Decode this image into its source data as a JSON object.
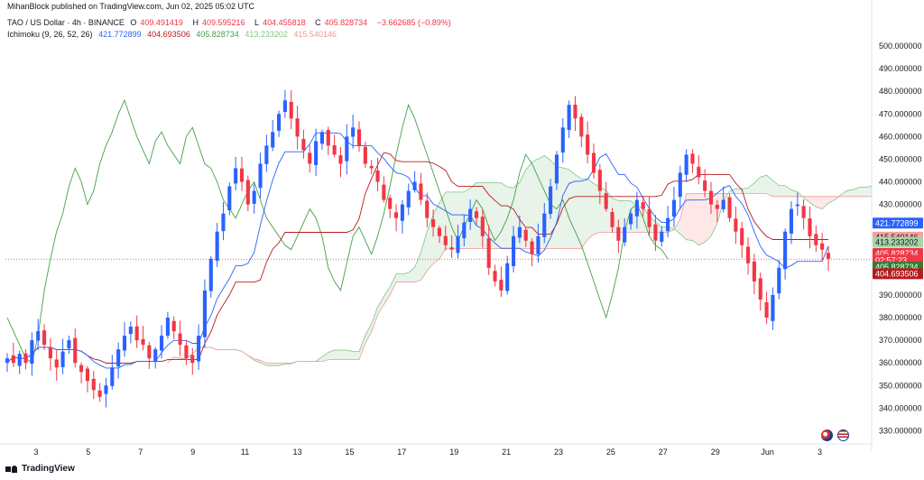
{
  "header": {
    "publisher": "MihanBlock published on TradingView.com, Jun 02, 2025 05:02 UTC",
    "symbol_line": "TAO / US Dollar · 4h · BINANCE",
    "ohlc": [
      {
        "label": "O",
        "value": "409.491419"
      },
      {
        "label": "H",
        "value": "409.595216"
      },
      {
        "label": "L",
        "value": "404.455818"
      },
      {
        "label": "C",
        "value": "405.828734"
      },
      {
        "label": "",
        "value": "−3.662685 (−0.89%)"
      }
    ],
    "ichimoku_label": "Ichimoku (9, 26, 52, 26)",
    "ichimoku_values": [
      {
        "value": "421.772899",
        "color": "#2962ff"
      },
      {
        "value": "404.693506",
        "color": "#b71c1c"
      },
      {
        "value": "405.828734",
        "color": "#43a047"
      },
      {
        "value": "413.233202",
        "color": "#81c784"
      },
      {
        "value": "415.540146",
        "color": "#ef9a9a"
      }
    ]
  },
  "footer": {
    "brand": "TradingView"
  },
  "icons": {
    "flags": [
      "flag-icon",
      "flag-icon"
    ]
  },
  "chart_data": {
    "type": "candlestick",
    "title": "TAO / US Dollar · 4h · BINANCE",
    "y_axis": {
      "ylim": [
        325,
        502
      ],
      "ticks": [
        "500.000000",
        "490.000000",
        "480.000000",
        "470.000000",
        "460.000000",
        "450.000000",
        "440.000000",
        "430.000000",
        "400.000000",
        "390.000000",
        "380.000000",
        "370.000000",
        "360.000000",
        "350.000000",
        "340.000000",
        "330.000000"
      ]
    },
    "x_axis": {
      "ticks": [
        "3",
        "5",
        "7",
        "9",
        "11",
        "13",
        "15",
        "17",
        "19",
        "21",
        "23",
        "25",
        "27",
        "29",
        "Jun",
        "3"
      ]
    },
    "price_badges": [
      {
        "value": "421.772899",
        "y": 421.77,
        "color": "#2962ff"
      },
      {
        "value": "415.540146",
        "y": 415.54,
        "color": "#f7a1a1",
        "text_color": "#131722"
      },
      {
        "value": "413.233202",
        "y": 413.23,
        "color": "#a5d6a7",
        "text_color": "#131722"
      },
      {
        "value": "405.828734",
        "y": 408.3,
        "color": "#f23645"
      },
      {
        "value": "02:57:23",
        "y": 405.4,
        "color": "#f23645"
      },
      {
        "value": "405.828734",
        "y": 402.3,
        "color": "#2e7d32"
      },
      {
        "value": "404.693506",
        "y": 399.4,
        "color": "#b71c1c"
      }
    ],
    "last_price": 405.83,
    "candles_anchor_closes": [
      362,
      360,
      364,
      360,
      370,
      374,
      368,
      362,
      358,
      365,
      370,
      360,
      356,
      352,
      348,
      345,
      350,
      358,
      366,
      372,
      376,
      370,
      368,
      362,
      366,
      372,
      380,
      374,
      368,
      362,
      360,
      372,
      392,
      406,
      418,
      426,
      438,
      446,
      440,
      430,
      436,
      448,
      456,
      462,
      470,
      476,
      468,
      460,
      454,
      448,
      458,
      462,
      456,
      452,
      448,
      460,
      464,
      456,
      448,
      446,
      440,
      432,
      428,
      424,
      430,
      436,
      440,
      432,
      424,
      420,
      416,
      412,
      410,
      416,
      422,
      428,
      424,
      416,
      402,
      396,
      392,
      404,
      416,
      420,
      414,
      408,
      416,
      426,
      438,
      452,
      464,
      474,
      468,
      460,
      452,
      444,
      436,
      428,
      420,
      414,
      420,
      426,
      432,
      428,
      420,
      414,
      418,
      424,
      432,
      444,
      452,
      448,
      442,
      436,
      430,
      428,
      432,
      424,
      418,
      412,
      404,
      396,
      388,
      380,
      390,
      402,
      418,
      428,
      430,
      424,
      416,
      412,
      410,
      406
    ],
    "series": [
      {
        "name": "Conversion Line",
        "color": "#2962ff"
      },
      {
        "name": "Base Line",
        "color": "#b71c1c"
      },
      {
        "name": "Lagging Span",
        "color": "#43a047"
      },
      {
        "name": "Leading Span A",
        "color": "#81c784"
      },
      {
        "name": "Leading Span B",
        "color": "#ef9a9a"
      }
    ]
  }
}
